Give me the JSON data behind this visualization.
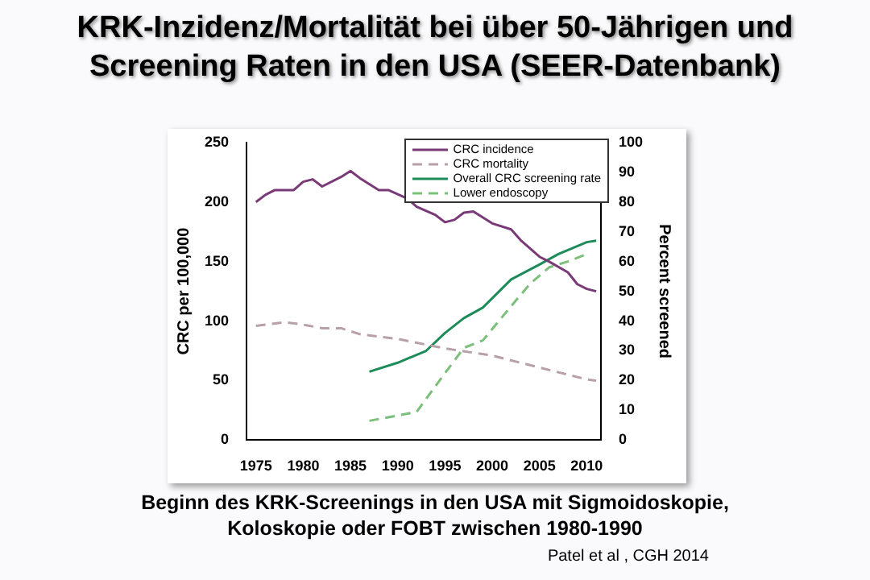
{
  "chart_data": {
    "type": "line",
    "title": "KRK-Inzidenz/Mortalität bei über 50-Jährigen und Screening Raten in den USA (SEER-Datenbank)",
    "annotations": [
      "Beginn des KRK-Screenings in den USA mit Sigmoidoskopie, Koloskopie oder FOBT zwischen 1980-1990",
      "Patel et al , CGH 2014"
    ],
    "ylabel": "CRC per 100,000",
    "y2label": "Percent screened",
    "xlim": [
      1974,
      2011.5
    ],
    "xticks": [
      1975,
      1980,
      1985,
      1990,
      1995,
      2000,
      2005,
      2010
    ],
    "ylim": [
      0,
      250
    ],
    "yticks": [
      0,
      50,
      100,
      150,
      200,
      250
    ],
    "y2lim": [
      0,
      100
    ],
    "y2ticks": [
      0,
      10,
      20,
      30,
      40,
      50,
      60,
      70,
      80,
      90,
      100
    ],
    "grid": false,
    "legend": "top right",
    "series": [
      {
        "name": "CRC incidence",
        "color": "#7a3a78",
        "line_style": "solid",
        "x": [
          1975,
          1976,
          1977,
          1979,
          1980,
          1981,
          1982,
          1984,
          1985,
          1986,
          1988,
          1989,
          1991,
          1992,
          1994,
          1995,
          1996,
          1997,
          1998,
          2000,
          2002,
          2003,
          2005,
          2006,
          2008,
          2009,
          2010,
          2011
        ],
        "values": [
          200,
          206,
          210,
          210,
          217,
          219,
          213,
          221,
          226,
          220,
          210,
          210,
          203,
          196,
          189,
          183,
          185,
          191,
          192,
          182,
          177,
          168,
          154,
          150,
          141,
          131,
          127,
          125
        ]
      },
      {
        "name": "CRC mortality",
        "color": "#b8a0a8",
        "line_style": "dashed",
        "x": [
          1975,
          1978,
          1980,
          1982,
          1984,
          1986,
          1990,
          1995,
          2000,
          2005,
          2010,
          2011
        ],
        "values": [
          96,
          99,
          97,
          94,
          94,
          89,
          85,
          77,
          71,
          61,
          51,
          50
        ]
      },
      {
        "name": "Overall CRC screening rate",
        "color": "#1e8c5a",
        "line_style": "solid",
        "axis": "y2",
        "x": [
          1987,
          1990,
          1993,
          1995,
          1997,
          1999,
          2002,
          2005,
          2007,
          2010,
          2011
        ],
        "values": [
          23,
          26,
          30,
          36,
          41,
          44.5,
          54,
          59,
          62.5,
          66.5,
          67
        ]
      },
      {
        "name": "Lower endoscopy",
        "color": "#7ac07a",
        "line_style": "dashed",
        "axis": "y2",
        "x": [
          1987,
          1992,
          1995,
          1997,
          1999,
          2002,
          2004,
          2006,
          2008,
          2010
        ],
        "values": [
          6.5,
          9.5,
          22.5,
          31,
          33.5,
          45,
          52.5,
          58,
          60,
          62.5
        ]
      }
    ]
  }
}
